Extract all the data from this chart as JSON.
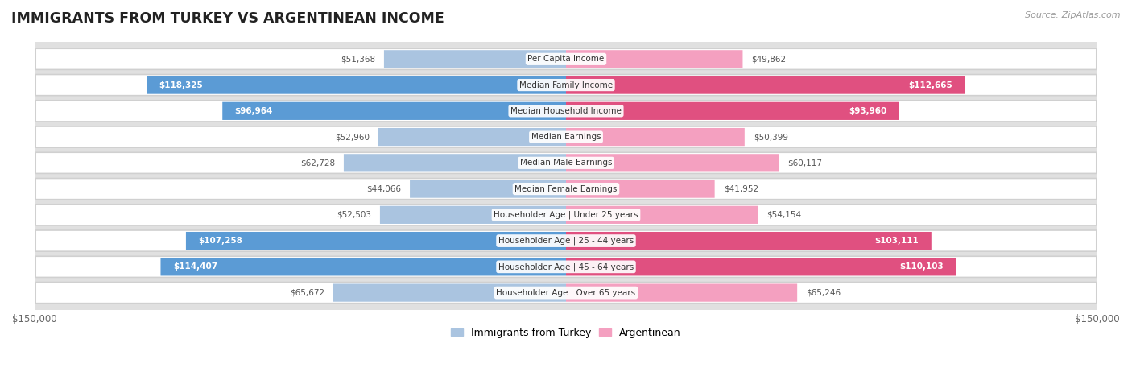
{
  "title": "IMMIGRANTS FROM TURKEY VS ARGENTINEAN INCOME",
  "source": "Source: ZipAtlas.com",
  "categories": [
    "Per Capita Income",
    "Median Family Income",
    "Median Household Income",
    "Median Earnings",
    "Median Male Earnings",
    "Median Female Earnings",
    "Householder Age | Under 25 years",
    "Householder Age | 25 - 44 years",
    "Householder Age | 45 - 64 years",
    "Householder Age | Over 65 years"
  ],
  "turkey_values": [
    51368,
    118325,
    96964,
    52960,
    62728,
    44066,
    52503,
    107258,
    114407,
    65672
  ],
  "argentina_values": [
    49862,
    112665,
    93960,
    50399,
    60117,
    41952,
    54154,
    103111,
    110103,
    65246
  ],
  "turkey_color_light": "#aac4e0",
  "turkey_color_dark": "#5b9bd5",
  "argentina_color_light": "#f4a0c0",
  "argentina_color_dark": "#e05080",
  "row_bg_color": "#e8e8e8",
  "row_inner_color": "#f5f5f5",
  "max_value": 150000,
  "turkey_label": "Immigrants from Turkey",
  "argentina_label": "Argentinean",
  "turkey_text_threshold": 90000,
  "argentina_text_threshold": 90000
}
